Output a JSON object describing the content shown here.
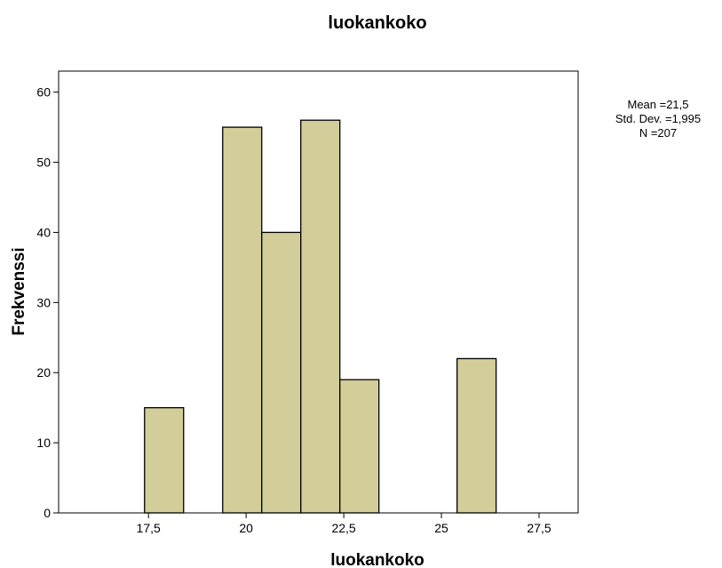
{
  "chart_data": {
    "type": "bar",
    "title": "luokankoko",
    "xlabel": "luokankoko",
    "ylabel": "Frekvenssi",
    "xlim": [
      15.2,
      28.5
    ],
    "ylim": [
      0,
      63
    ],
    "bin_width": 1,
    "bins": [
      {
        "center": 17.9,
        "value": 15
      },
      {
        "center": 19.9,
        "value": 55
      },
      {
        "center": 20.9,
        "value": 40
      },
      {
        "center": 21.9,
        "value": 56
      },
      {
        "center": 22.9,
        "value": 19
      },
      {
        "center": 25.9,
        "value": 22
      }
    ],
    "x_ticks": [
      {
        "value": 17.5,
        "label": "17,5"
      },
      {
        "value": 20,
        "label": "20"
      },
      {
        "value": 22.5,
        "label": "22,5"
      },
      {
        "value": 25,
        "label": "25"
      },
      {
        "value": 27.5,
        "label": "27,5"
      }
    ],
    "y_ticks": [
      {
        "value": 0,
        "label": "0"
      },
      {
        "value": 10,
        "label": "10"
      },
      {
        "value": 20,
        "label": "20"
      },
      {
        "value": 30,
        "label": "30"
      },
      {
        "value": 40,
        "label": "40"
      },
      {
        "value": 50,
        "label": "50"
      },
      {
        "value": 60,
        "label": "60"
      }
    ],
    "stats": {
      "mean": "Mean =21,5",
      "std_dev": "Std. Dev. =1,995",
      "n": "N =207"
    },
    "bar_color": "#d3ce99",
    "bar_stroke": "#000000",
    "grid": false,
    "legend": "none"
  }
}
